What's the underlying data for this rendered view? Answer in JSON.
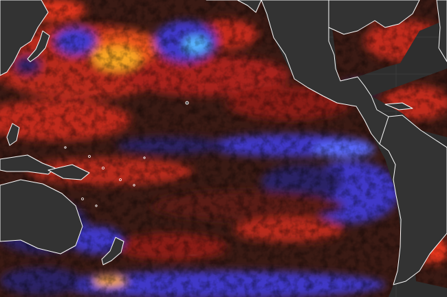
{
  "map": {
    "projection": "equirectangular",
    "background_color": "#2e2e2e",
    "graticule_color": "#4a4a4a",
    "coastline_color": "#ffffff",
    "land_color": "#333333",
    "palette": {
      "very_cold": "#56b4ff",
      "cold": "#3f38c8",
      "cool": "#2a2466",
      "neutral": "#3a1a14",
      "warm": "#a8211a",
      "hot": "#e2361c",
      "very_hot": "#f7a322"
    }
  }
}
